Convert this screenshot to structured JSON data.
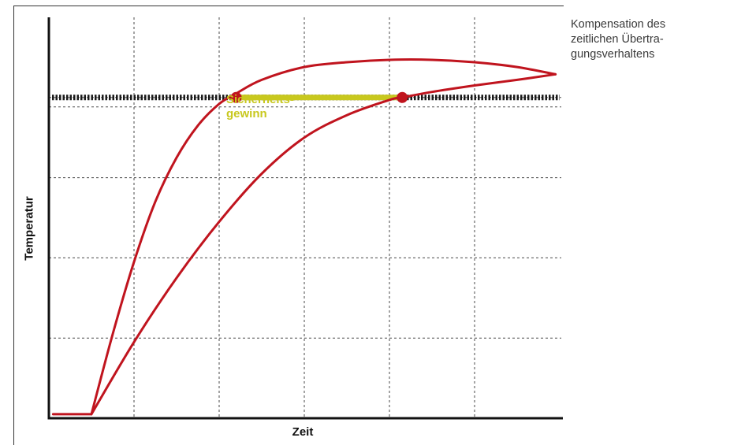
{
  "caption": {
    "lines": [
      "Kompensation des",
      "zeitlichen Übertra-",
      "gungsverhaltens"
    ]
  },
  "chart_data": {
    "type": "line",
    "title": "",
    "xlabel": "Zeit",
    "ylabel": "Temperatur",
    "grid": true,
    "xlim": [
      0,
      6
    ],
    "ylim": [
      0,
      5
    ],
    "threshold": {
      "y": 4,
      "style": "dashed-thick"
    },
    "annotation": {
      "lines": [
        "Sicherheits-",
        "gewinn"
      ],
      "from_x": 2.2,
      "to_x": 4.15,
      "y": 4
    },
    "series": [
      {
        "x": [
          0.05,
          0.5,
          0.75,
          1.0,
          1.25,
          1.5,
          1.75,
          2.0,
          2.2,
          2.5,
          3.0,
          3.5,
          4.0,
          4.5,
          5.0,
          5.5,
          5.95
        ],
        "y": [
          0.05,
          0.05,
          1.05,
          1.95,
          2.7,
          3.25,
          3.65,
          3.92,
          4.05,
          4.22,
          4.38,
          4.44,
          4.47,
          4.47,
          4.44,
          4.38,
          4.29
        ]
      },
      {
        "x": [
          0.5,
          1.0,
          1.5,
          2.0,
          2.5,
          3.0,
          3.5,
          4.0,
          4.15,
          4.5,
          5.0,
          5.5,
          5.95
        ],
        "y": [
          0.05,
          0.95,
          1.75,
          2.45,
          3.05,
          3.5,
          3.78,
          3.97,
          4.0,
          4.07,
          4.15,
          4.22,
          4.29
        ]
      }
    ],
    "markers": [
      {
        "x": 2.2,
        "y": 4.0
      },
      {
        "x": 4.15,
        "y": 4.0
      }
    ],
    "colors": {
      "curve": "#c0141e",
      "marker": "#c0141e",
      "highlight": "#c8c81e",
      "threshold": "#1a1a1a",
      "grid": "#4a4a4a",
      "axis": "#111111"
    }
  }
}
